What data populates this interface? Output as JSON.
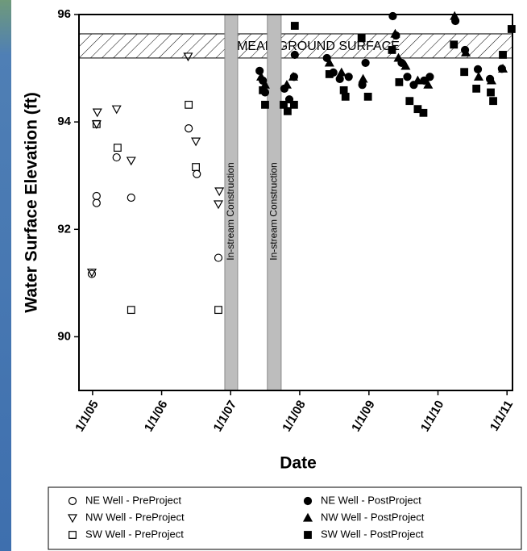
{
  "chart_data": {
    "type": "scatter",
    "x_label": "Date",
    "y_label": "Water Surface Elevation (ft)",
    "xlim": [
      "2004-10-21",
      "2011-01-30"
    ],
    "xticks": [
      {
        "value": "2005-01-01",
        "label": "1/1/05"
      },
      {
        "value": "2006-01-01",
        "label": "1/1/06"
      },
      {
        "value": "2007-01-01",
        "label": "1/1/07"
      },
      {
        "value": "2008-01-01",
        "label": "1/1/08"
      },
      {
        "value": "2009-01-01",
        "label": "1/1/09"
      },
      {
        "value": "2010-01-01",
        "label": "1/1/10"
      },
      {
        "value": "2011-01-01",
        "label": "1/1/11"
      }
    ],
    "ylim": [
      89,
      96
    ],
    "yticks": [
      90,
      92,
      94,
      96
    ],
    "hbands": [
      {
        "label": "MEAN GROUND SURFACE",
        "range": [
          95.19,
          95.64
        ]
      }
    ],
    "vbands": [
      {
        "label": "In-stream Construction",
        "range": [
          "2006-12-01",
          "2007-02-07"
        ]
      },
      {
        "label": "In-stream Construction",
        "range": [
          "2007-07-14",
          "2007-09-25"
        ]
      }
    ],
    "series": [
      {
        "name": "NE Well - PreProject",
        "marker": "circle",
        "filled": false,
        "color": "#000000",
        "x": [
          "2004-12-28",
          "2005-01-22",
          "2005-01-22",
          "2005-05-08",
          "2005-07-24",
          "2006-05-24",
          "2006-07-06",
          "2006-10-28"
        ],
        "values": [
          91.17,
          92.62,
          92.49,
          93.34,
          92.59,
          93.88,
          93.03,
          91.47
        ]
      },
      {
        "name": "NW Well - PreProject",
        "marker": "triangle-down",
        "filled": false,
        "color": "#000000",
        "x": [
          "2004-12-28",
          "2005-01-26",
          "2005-01-22",
          "2005-05-08",
          "2005-07-24",
          "2006-05-21",
          "2006-07-01",
          "2006-11-02",
          "2006-10-28"
        ],
        "values": [
          91.2,
          94.18,
          93.96,
          94.24,
          93.28,
          95.22,
          93.64,
          92.71,
          92.47
        ]
      },
      {
        "name": "SW Well - PreProject",
        "marker": "square",
        "filled": false,
        "color": "#000000",
        "x": [
          "2005-01-22",
          "2005-05-13",
          "2005-07-24",
          "2006-05-24",
          "2006-07-01",
          "2006-10-28"
        ],
        "values": [
          93.96,
          93.52,
          90.5,
          94.32,
          93.16,
          90.5
        ]
      },
      {
        "name": "NE Well - PostProject",
        "marker": "circle",
        "filled": true,
        "color": "#000000",
        "x": [
          "2007-06-03",
          "2007-06-20",
          "2007-07-02",
          "2007-10-12",
          "2007-11-07",
          "2007-12-02",
          "2007-12-06",
          "2008-05-24",
          "2008-06-27",
          "2008-07-31",
          "2008-09-16",
          "2008-11-27",
          "2008-12-14",
          "2009-05-07",
          "2009-05-24",
          "2009-06-23",
          "2009-07-23",
          "2009-08-26",
          "2009-10-20",
          "2009-11-19",
          "2010-04-03",
          "2010-05-24",
          "2010-07-31",
          "2010-10-03",
          "2010-12-05"
        ],
        "values": [
          94.95,
          94.77,
          94.55,
          94.62,
          94.42,
          94.84,
          95.25,
          95.19,
          94.92,
          94.8,
          94.84,
          94.69,
          95.1,
          95.97,
          95.61,
          95.1,
          94.84,
          94.69,
          94.77,
          94.84,
          95.88,
          95.34,
          94.98,
          94.8,
          94.99
        ]
      },
      {
        "name": "NW Well - PostProject",
        "marker": "triangle",
        "filled": true,
        "color": "#000000",
        "x": [
          "2007-06-11",
          "2007-07-02",
          "2007-10-25",
          "2007-11-28",
          "2008-06-06",
          "2008-08-09",
          "2008-12-01",
          "2009-05-20",
          "2009-06-06",
          "2009-07-14",
          "2009-09-16",
          "2009-11-10",
          "2010-03-30",
          "2010-05-28",
          "2010-08-04",
          "2010-10-11",
          "2010-12-10"
        ],
        "values": [
          94.84,
          94.69,
          94.69,
          94.84,
          95.1,
          94.92,
          94.8,
          95.64,
          95.19,
          95.04,
          94.77,
          94.69,
          95.97,
          95.29,
          94.84,
          94.77,
          94.99
        ]
      },
      {
        "name": "SW Well - PostProject",
        "marker": "square",
        "filled": true,
        "color": "#000000",
        "x": [
          "2007-06-20",
          "2007-07-02",
          "2007-10-08",
          "2007-10-29",
          "2007-12-06",
          "2007-12-02",
          "2008-06-06",
          "2008-08-21",
          "2008-08-30",
          "2008-11-23",
          "2008-12-27",
          "2009-05-03",
          "2009-06-10",
          "2009-08-04",
          "2009-09-16",
          "2009-10-16",
          "2010-03-26",
          "2010-05-20",
          "2010-07-23",
          "2010-10-07",
          "2010-10-20",
          "2010-12-10",
          "2011-01-25"
        ],
        "values": [
          94.59,
          94.32,
          94.32,
          94.2,
          95.79,
          94.32,
          94.89,
          94.59,
          94.47,
          95.56,
          94.47,
          95.34,
          94.74,
          94.39,
          94.24,
          94.17,
          95.44,
          94.93,
          94.62,
          94.55,
          94.39,
          95.25,
          95.73
        ]
      }
    ]
  }
}
